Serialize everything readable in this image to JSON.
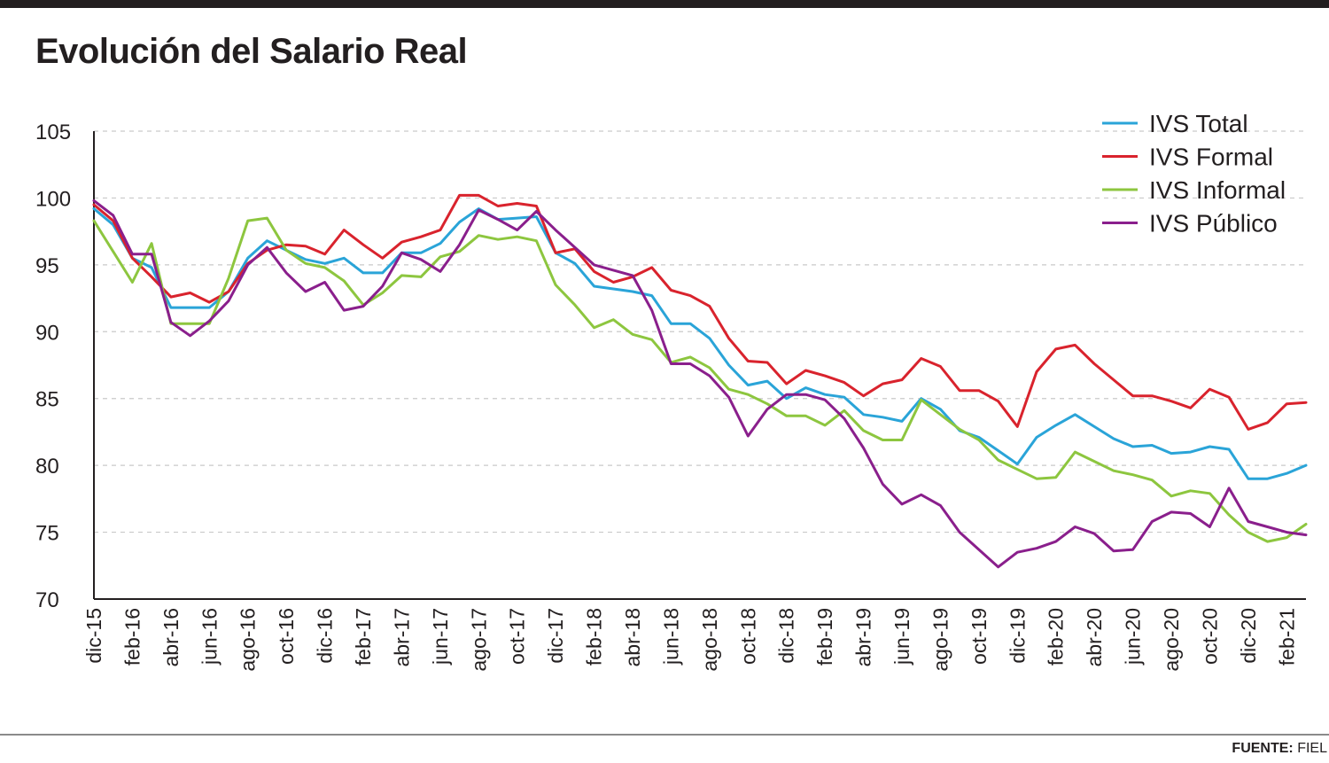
{
  "title": "Evolución del Salario Real",
  "source_label": "FUENTE:",
  "source_name": "FIEL",
  "chart_data": {
    "type": "line",
    "title": "Evolución del Salario Real",
    "xlabel": "",
    "ylabel": "",
    "ylim": [
      70,
      105
    ],
    "yticks": [
      70,
      75,
      80,
      85,
      90,
      95,
      100,
      105
    ],
    "grid": "horizontal dashed",
    "legend_position": "top-right",
    "x_tick_labels": [
      "dic-15",
      "feb-16",
      "abr-16",
      "jun-16",
      "ago-16",
      "oct-16",
      "dic-16",
      "feb-17",
      "abr-17",
      "jun-17",
      "ago-17",
      "oct-17",
      "dic-17",
      "feb-18",
      "abr-18",
      "jun-18",
      "ago-18",
      "oct-18",
      "dic-18",
      "feb-19",
      "abr-19",
      "jun-19",
      "ago-19",
      "oct-19",
      "dic-19",
      "feb-20",
      "abr-20",
      "jun-20",
      "ago-20",
      "oct-20",
      "dic-20",
      "feb-21"
    ],
    "x": [
      "dic-15",
      "ene-16",
      "feb-16",
      "mar-16",
      "abr-16",
      "may-16",
      "jun-16",
      "jul-16",
      "ago-16",
      "sep-16",
      "oct-16",
      "nov-16",
      "dic-16",
      "ene-17",
      "feb-17",
      "mar-17",
      "abr-17",
      "may-17",
      "jun-17",
      "jul-17",
      "ago-17",
      "sep-17",
      "oct-17",
      "nov-17",
      "dic-17",
      "ene-18",
      "feb-18",
      "mar-18",
      "abr-18",
      "may-18",
      "jun-18",
      "jul-18",
      "ago-18",
      "sep-18",
      "oct-18",
      "nov-18",
      "dic-18",
      "ene-19",
      "feb-19",
      "mar-19",
      "abr-19",
      "may-19",
      "jun-19",
      "jul-19",
      "ago-19",
      "sep-19",
      "oct-19",
      "nov-19",
      "dic-19",
      "ene-20",
      "feb-20",
      "mar-20",
      "abr-20",
      "may-20",
      "jun-20",
      "jul-20",
      "ago-20",
      "sep-20",
      "oct-20",
      "nov-20",
      "dic-20",
      "ene-21",
      "feb-21",
      "mar-21"
    ],
    "series": [
      {
        "name": "IVS Total",
        "color": "#2aa4d8",
        "values": [
          99.2,
          98.0,
          95.5,
          94.8,
          91.8,
          91.8,
          91.8,
          93.0,
          95.5,
          96.8,
          96.1,
          95.4,
          95.1,
          95.5,
          94.4,
          94.4,
          95.9,
          95.9,
          96.6,
          98.2,
          99.2,
          98.4,
          98.5,
          98.6,
          95.9,
          95.1,
          93.4,
          93.2,
          93.0,
          92.7,
          90.6,
          90.6,
          89.5,
          87.5,
          86.0,
          86.3,
          85.0,
          85.8,
          85.3,
          85.1,
          83.8,
          83.6,
          83.3,
          85.0,
          84.2,
          82.6,
          82.1,
          81.1,
          80.1,
          82.1,
          83.0,
          83.8,
          82.9,
          82.0,
          81.4,
          81.5,
          80.9,
          81.0,
          81.4,
          81.2,
          79.0,
          79.0,
          79.4,
          80.0
        ]
      },
      {
        "name": "IVS Formal",
        "color": "#d9232d",
        "values": [
          99.5,
          98.3,
          95.5,
          94.1,
          92.6,
          92.9,
          92.2,
          93.0,
          95.1,
          96.1,
          96.5,
          96.4,
          95.8,
          97.6,
          96.5,
          95.5,
          96.7,
          97.1,
          97.6,
          100.2,
          100.2,
          99.4,
          99.6,
          99.4,
          95.9,
          96.2,
          94.5,
          93.7,
          94.1,
          94.8,
          93.1,
          92.7,
          91.9,
          89.5,
          87.8,
          87.7,
          86.1,
          87.1,
          86.7,
          86.2,
          85.2,
          86.1,
          86.4,
          88.0,
          87.4,
          85.6,
          85.6,
          84.8,
          82.9,
          87.0,
          88.7,
          89.0,
          87.6,
          86.4,
          85.2,
          85.2,
          84.8,
          84.3,
          85.7,
          85.1,
          82.7,
          83.2,
          84.6,
          84.7
        ]
      },
      {
        "name": "IVS Informal",
        "color": "#8dc63f",
        "values": [
          98.3,
          96.0,
          93.7,
          96.6,
          90.6,
          90.6,
          90.6,
          94.0,
          98.3,
          98.5,
          96.1,
          95.1,
          94.8,
          93.8,
          92.0,
          92.9,
          94.2,
          94.1,
          95.6,
          96.0,
          97.2,
          96.9,
          97.1,
          96.8,
          93.5,
          92.0,
          90.3,
          90.9,
          89.8,
          89.4,
          87.7,
          88.1,
          87.3,
          85.7,
          85.3,
          84.6,
          83.7,
          83.7,
          83.0,
          84.1,
          82.6,
          81.9,
          81.9,
          84.9,
          83.8,
          82.7,
          81.9,
          80.4,
          79.7,
          79.0,
          79.1,
          81.0,
          80.3,
          79.6,
          79.3,
          78.9,
          77.7,
          78.1,
          77.9,
          76.3,
          75.0,
          74.3,
          74.6,
          75.6
        ]
      },
      {
        "name": "IVS Público",
        "color": "#8a1f8c",
        "values": [
          99.8,
          98.7,
          95.8,
          95.8,
          90.7,
          89.7,
          90.8,
          92.3,
          95.0,
          96.3,
          94.4,
          93.0,
          93.7,
          91.6,
          91.9,
          93.4,
          95.9,
          95.4,
          94.5,
          96.5,
          99.1,
          98.4,
          97.6,
          99.0,
          97.6,
          96.3,
          95.0,
          94.6,
          94.2,
          91.6,
          87.6,
          87.6,
          86.7,
          85.1,
          82.2,
          84.2,
          85.3,
          85.3,
          84.9,
          83.5,
          81.3,
          78.6,
          77.1,
          77.8,
          77.0,
          75.0,
          73.7,
          72.4,
          73.5,
          73.8,
          74.3,
          75.4,
          74.9,
          73.6,
          73.7,
          75.8,
          76.5,
          76.4,
          75.4,
          78.3,
          75.8,
          75.4,
          75.0,
          74.8
        ]
      }
    ]
  }
}
